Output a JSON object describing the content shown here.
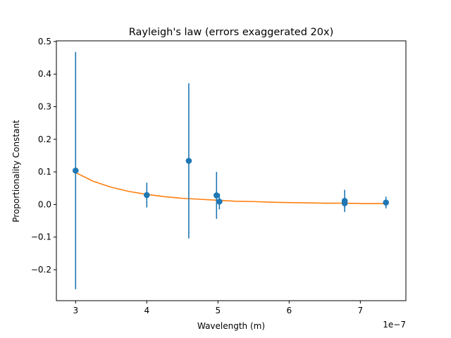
{
  "chart_data": {
    "type": "scatter",
    "title": "Rayleigh's law (errors exaggerated 20x)",
    "xlabel": "Wavelength (m)",
    "ylabel": "Proportionality Constant",
    "x_offset_label": "1e−7",
    "xlim": [
      2.73,
      7.64
    ],
    "ylim": [
      -0.295,
      0.502
    ],
    "xticks": [
      3,
      4,
      5,
      6,
      7
    ],
    "xtick_labels": [
      "3",
      "4",
      "5",
      "6",
      "7"
    ],
    "yticks": [
      -0.2,
      -0.1,
      0.0,
      0.1,
      0.2,
      0.3,
      0.4,
      0.5
    ],
    "ytick_labels": [
      "−0.2",
      "−0.1",
      "0.0",
      "0.1",
      "0.2",
      "0.3",
      "0.4",
      "0.5"
    ],
    "grid": false,
    "legend": "none",
    "series": [
      {
        "kind": "errorbar",
        "color": "#1f77b4",
        "points": [
          {
            "x": 3.0,
            "y": 0.104,
            "err": 0.364
          },
          {
            "x": 4.0,
            "y": 0.029,
            "err": 0.038
          },
          {
            "x": 4.59,
            "y": 0.134,
            "err": 0.238
          },
          {
            "x": 4.98,
            "y": 0.028,
            "err": 0.072
          },
          {
            "x": 5.02,
            "y": 0.009,
            "err": 0.024
          },
          {
            "x": 6.78,
            "y": 0.011,
            "err": 0.034
          },
          {
            "x": 6.78,
            "y": 0.004,
            "err": 0.014
          },
          {
            "x": 7.36,
            "y": 0.006,
            "err": 0.018
          }
        ]
      },
      {
        "kind": "fit-line",
        "color": "#ff7f0e",
        "x": [
          3.0,
          3.25,
          3.5,
          3.75,
          4.0,
          4.25,
          4.5,
          4.75,
          5.0,
          5.25,
          5.5,
          5.75,
          6.0,
          6.25,
          6.5,
          6.75,
          7.0,
          7.25,
          7.36
        ],
        "y": [
          0.098,
          0.071,
          0.053,
          0.04,
          0.031,
          0.024,
          0.019,
          0.016,
          0.013,
          0.01,
          0.009,
          0.007,
          0.006,
          0.005,
          0.004,
          0.004,
          0.003,
          0.003,
          0.003
        ]
      }
    ]
  }
}
